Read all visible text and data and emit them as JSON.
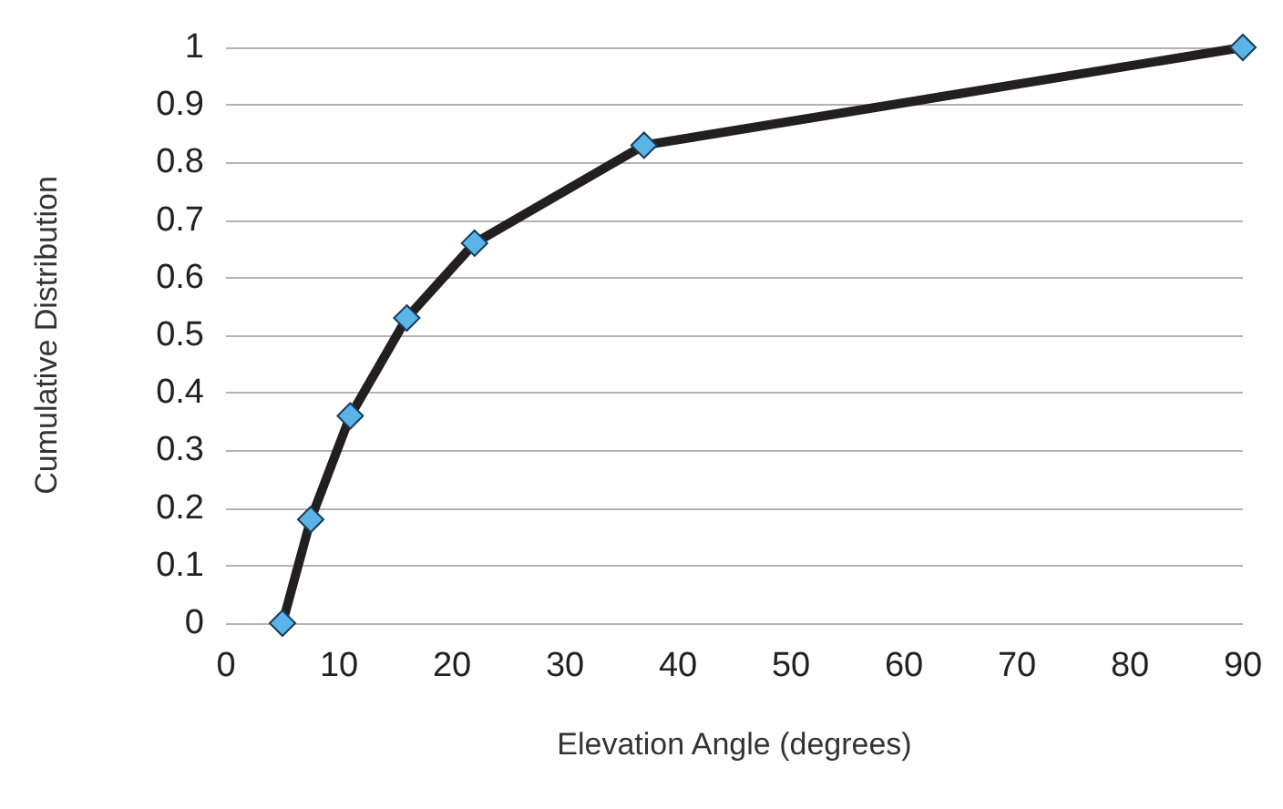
{
  "chart_data": {
    "type": "line",
    "xlabel": "Elevation Angle (degrees)",
    "ylabel": "Cumulative Distribution",
    "x": [
      5,
      7.5,
      11,
      16,
      22,
      37,
      90
    ],
    "series": [
      {
        "color": "#231f20",
        "values": [
          0,
          0.18,
          0.36,
          0.53,
          0.66,
          0.83,
          1
        ]
      }
    ],
    "xlim": [
      0,
      90
    ],
    "xticks": [
      0,
      10,
      20,
      30,
      40,
      50,
      60,
      70,
      80,
      90
    ],
    "ylim": [
      0,
      1
    ],
    "yticks": [
      0,
      0.1,
      0.2,
      0.3,
      0.4,
      0.5,
      0.6,
      0.7,
      0.8,
      0.9,
      1
    ],
    "grid": "y",
    "marker": "diamond",
    "line_style": "solid"
  }
}
